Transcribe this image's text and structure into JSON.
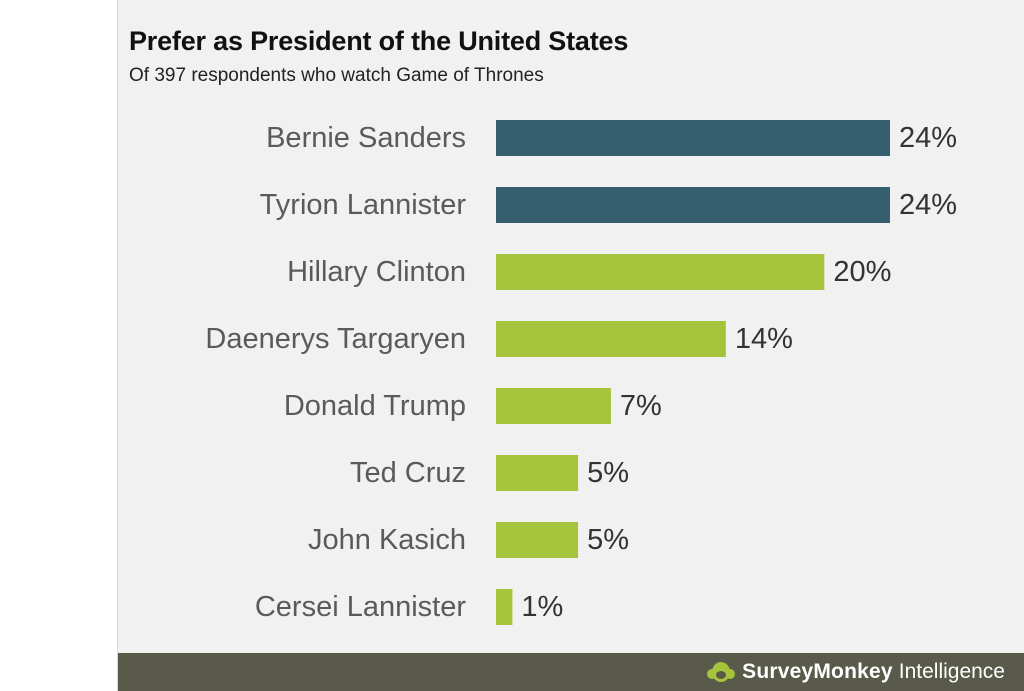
{
  "title": "Prefer as President of the United States",
  "subtitle": "Of 397 respondents who watch Game of Thrones",
  "chart_data": {
    "type": "bar",
    "orientation": "horizontal",
    "title": "Prefer as President of the United States",
    "subtitle": "Of 397 respondents who watch Game of Thrones",
    "categories": [
      "Bernie Sanders",
      "Tyrion Lannister",
      "Hillary Clinton",
      "Daenerys Targaryen",
      "Donald Trump",
      "Ted Cruz",
      "John Kasich",
      "Cersei Lannister"
    ],
    "values": [
      24,
      24,
      20,
      14,
      7,
      5,
      5,
      1
    ],
    "value_labels": [
      "24%",
      "24%",
      "20%",
      "14%",
      "7%",
      "5%",
      "5%",
      "1%"
    ],
    "bar_colors": [
      "#355f6e",
      "#355f6e",
      "#a5c43c",
      "#a5c43c",
      "#a5c43c",
      "#a5c43c",
      "#a5c43c",
      "#a5c43c"
    ],
    "unit": "%",
    "xlim": [
      0,
      24
    ],
    "grid": false,
    "xlabel": "",
    "ylabel": ""
  },
  "footer": {
    "brand_name": "SurveyMonkey",
    "brand_suffix": "Intelligence",
    "brand_icon": "monkey-logo-icon"
  },
  "colors": {
    "panel_bg": "#f1f1f1",
    "footer_bg": "#5a5a4b",
    "highlight_bar": "#355f6e",
    "standard_bar": "#a5c43c"
  }
}
